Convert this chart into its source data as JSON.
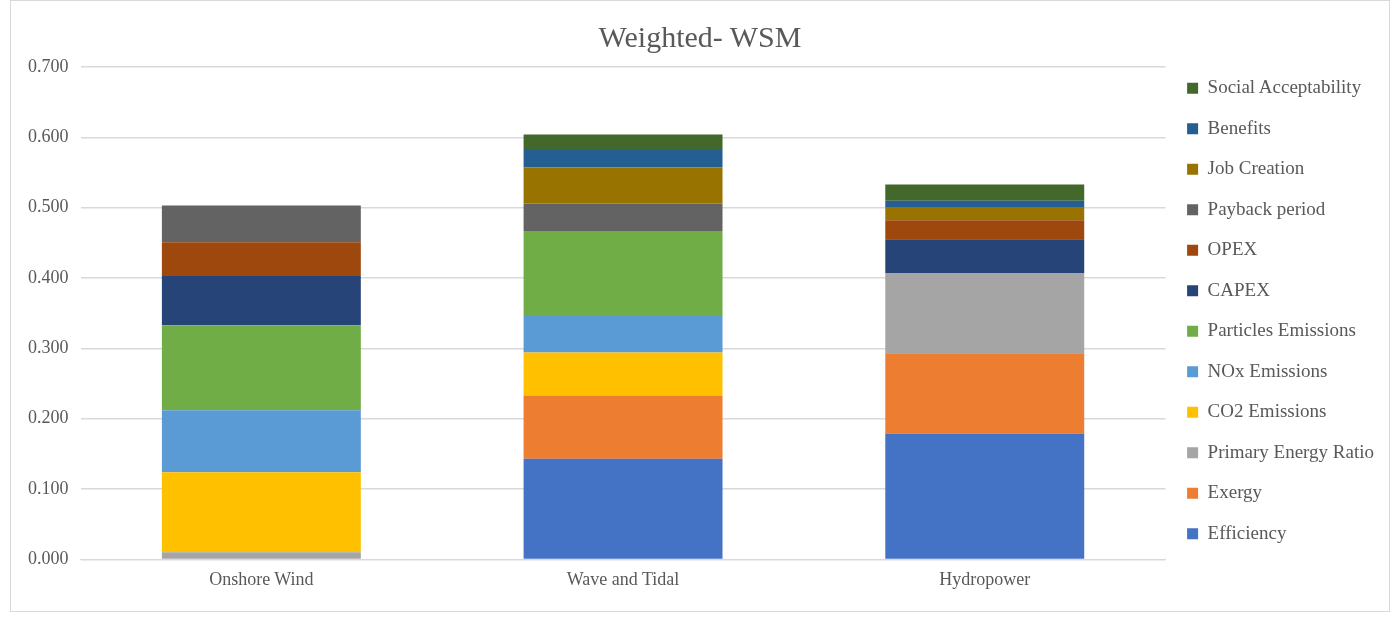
{
  "chart_data": {
    "type": "bar",
    "title": "Weighted- WSM",
    "stacked": true,
    "categories": [
      "Onshore Wind",
      "Wave and Tidal",
      "Hydropower"
    ],
    "series": [
      {
        "name": "Efficiency",
        "color": "#4472c4",
        "values": [
          0,
          0.143,
          0.179
        ]
      },
      {
        "name": "Exergy",
        "color": "#ed7d31",
        "values": [
          0,
          0.09,
          0.114
        ]
      },
      {
        "name": "Primary Energy Ratio",
        "color": "#a5a5a5",
        "values": [
          0.01,
          0,
          0.114
        ]
      },
      {
        "name": "CO2 Emissions",
        "color": "#ffc000",
        "values": [
          0.114,
          0.061,
          0
        ]
      },
      {
        "name": "NOx Emissions",
        "color": "#5b9bd5",
        "values": [
          0.088,
          0.052,
          0
        ]
      },
      {
        "name": "Particles Emissions",
        "color": "#70ad47",
        "values": [
          0.121,
          0.121,
          0
        ]
      },
      {
        "name": "CAPEX",
        "color": "#264478",
        "values": [
          0.07,
          0,
          0.048
        ]
      },
      {
        "name": "OPEX",
        "color": "#9e480e",
        "values": [
          0.048,
          0,
          0.027
        ]
      },
      {
        "name": "Payback period",
        "color": "#636363",
        "values": [
          0.052,
          0.039,
          0
        ]
      },
      {
        "name": "Job Creation",
        "color": "#997300",
        "values": [
          0,
          0.051,
          0.019
        ]
      },
      {
        "name": "Benefits",
        "color": "#255e91",
        "values": [
          0,
          0.025,
          0.009
        ]
      },
      {
        "name": "Social Acceptability",
        "color": "#43682b",
        "values": [
          0,
          0.022,
          0.023
        ]
      }
    ],
    "ylim": [
      0,
      0.7
    ],
    "yticks": [
      {
        "value": 0,
        "label": "0.000"
      },
      {
        "value": 0.1,
        "label": "0.100"
      },
      {
        "value": 0.2,
        "label": "0.200"
      },
      {
        "value": 0.3,
        "label": "0.300"
      },
      {
        "value": 0.4,
        "label": "0.400"
      },
      {
        "value": 0.5,
        "label": "0.500"
      },
      {
        "value": 0.6,
        "label": "0.600"
      },
      {
        "value": 0.7,
        "label": "0.700"
      }
    ],
    "grid": "y",
    "legend": "right"
  }
}
